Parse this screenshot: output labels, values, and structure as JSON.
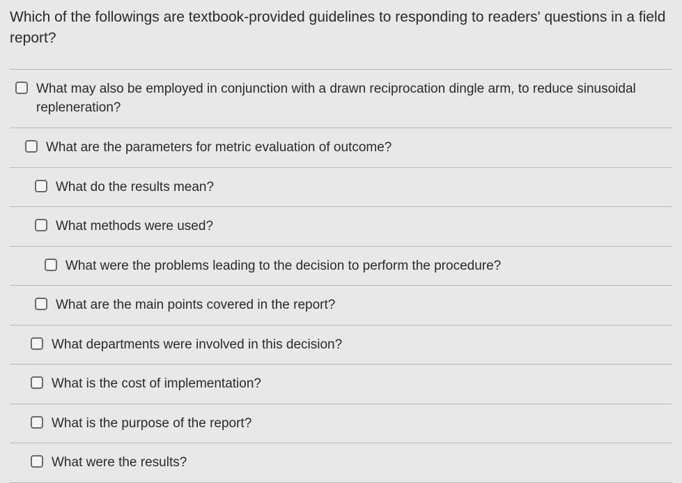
{
  "question": "Which of the followings are textbook-provided guidelines to responding to readers' questions in a field report?",
  "options": [
    {
      "label": "What may also be employed in conjunction with a drawn reciprocation dingle arm, to reduce sinusoidal repleneration?",
      "indent": ""
    },
    {
      "label": "What are the parameters for metric evaluation of outcome?",
      "indent": "indent1"
    },
    {
      "label": "What do the results mean?",
      "indent": "indent2"
    },
    {
      "label": "What methods were used?",
      "indent": "indent2"
    },
    {
      "label": "What were the problems leading to the decision to perform the procedure?",
      "indent": "indent3"
    },
    {
      "label": "What are the main points covered in the report?",
      "indent": "indent2"
    },
    {
      "label": "What departments were involved in this decision?",
      "indent": "indent4"
    },
    {
      "label": "What is the cost of implementation?",
      "indent": "indent4"
    },
    {
      "label": "What is the purpose of the report?",
      "indent": "indent4"
    },
    {
      "label": "What were the results?",
      "indent": "indent4"
    }
  ],
  "colors": {
    "background": "#e8e8e8",
    "text": "#2a2a2a",
    "border": "#b8b8b8",
    "checkbox_border": "#6a6a6a"
  },
  "typography": {
    "question_fontsize": 21,
    "option_fontsize": 19,
    "font_family": "Helvetica Neue"
  }
}
